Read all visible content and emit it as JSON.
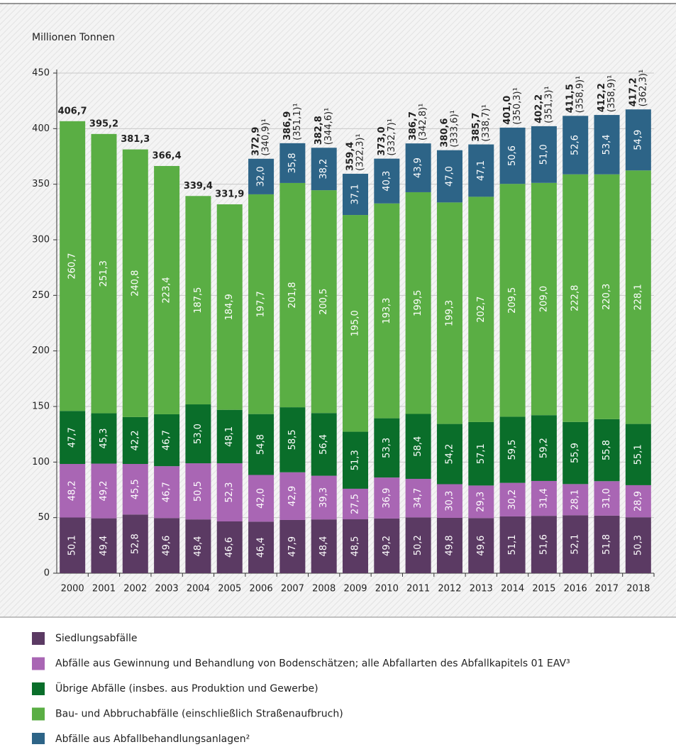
{
  "chart_data": {
    "type": "bar",
    "stacked": true,
    "y_label": "Millionen Tonnen",
    "categories": [
      "2000",
      "2001",
      "2002",
      "2003",
      "2004",
      "2005",
      "2006",
      "2007",
      "2008",
      "2009",
      "2010",
      "2011",
      "2012",
      "2013",
      "2014",
      "2015",
      "2016",
      "2017",
      "2018"
    ],
    "ylim": [
      0,
      450
    ],
    "yticks": [
      0,
      50,
      100,
      150,
      200,
      250,
      300,
      350,
      400,
      450
    ],
    "grid": true,
    "series": [
      {
        "name": "Siedlungsabfälle",
        "color": "#5b3a63",
        "values": [
          50.1,
          49.4,
          52.8,
          49.6,
          48.4,
          46.6,
          46.4,
          47.9,
          48.4,
          48.5,
          49.2,
          50.2,
          49.8,
          49.6,
          51.1,
          51.6,
          52.1,
          51.8,
          50.3
        ],
        "value_labels": [
          "50,1",
          "49,4",
          "52,8",
          "49,6",
          "48,4",
          "46,6",
          "46,4",
          "47,9",
          "48,4",
          "48,5",
          "49,2",
          "50,2",
          "49,8",
          "49,6",
          "51,1",
          "51,6",
          "52,1",
          "51,8",
          "50,3"
        ]
      },
      {
        "name": "Abfälle aus Gewinnung und Behandlung von Bodenschätzen; alle Abfallarten des Abfallkapitels 01 EAV³",
        "color": "#a966b4",
        "values": [
          48.2,
          49.2,
          45.5,
          46.7,
          50.5,
          52.3,
          42.0,
          42.9,
          39.3,
          27.5,
          36.9,
          34.7,
          30.3,
          29.3,
          30.2,
          31.4,
          28.1,
          31.0,
          28.9
        ],
        "value_labels": [
          "48,2",
          "49,2",
          "45,5",
          "46,7",
          "50,5",
          "52,3",
          "42,0",
          "42,9",
          "39,3",
          "27,5",
          "36,9",
          "34,7",
          "30,3",
          "29,3",
          "30,2",
          "31,4",
          "28,1",
          "31,0",
          "28,9"
        ]
      },
      {
        "name": "Übrige Abfälle (insbes. aus Produktion und Gewerbe)",
        "color": "#0a6e2a",
        "values": [
          47.7,
          45.3,
          42.2,
          46.7,
          53.0,
          48.1,
          54.8,
          58.5,
          56.4,
          51.3,
          53.3,
          58.4,
          54.2,
          57.1,
          59.5,
          59.2,
          55.9,
          55.8,
          55.1
        ],
        "value_labels": [
          "47,7",
          "45,3",
          "42,2",
          "46,7",
          "53,0",
          "48,1",
          "54,8",
          "58,5",
          "56,4",
          "51,3",
          "53,3",
          "58,4",
          "54,2",
          "57,1",
          "59,5",
          "59,2",
          "55,9",
          "55,8",
          "55,1"
        ]
      },
      {
        "name": "Bau- und Abbruchabfälle (einschließlich Straßenaufbruch)",
        "color": "#5aae44",
        "values": [
          260.7,
          251.3,
          240.8,
          223.4,
          187.5,
          184.9,
          197.7,
          201.8,
          200.5,
          195.0,
          193.3,
          199.5,
          199.3,
          202.7,
          209.5,
          209.0,
          222.8,
          220.3,
          228.1
        ],
        "value_labels": [
          "260,7",
          "251,3",
          "240,8",
          "223,4",
          "187,5",
          "184,9",
          "197,7",
          "201,8",
          "200,5",
          "195,0",
          "193,3",
          "199,5",
          "199,3",
          "202,7",
          "209,5",
          "209,0",
          "222,8",
          "220,3",
          "228,1"
        ]
      },
      {
        "name": "Abfälle aus Abfallbehandlungsanlagen²",
        "color": "#2d6487",
        "values": [
          null,
          null,
          null,
          null,
          null,
          null,
          32.0,
          35.8,
          38.2,
          37.1,
          40.3,
          43.9,
          47.0,
          47.1,
          50.6,
          51.0,
          52.6,
          53.4,
          54.9
        ],
        "value_labels": [
          null,
          null,
          null,
          null,
          null,
          null,
          "32,0",
          "35,8",
          "38,2",
          "37,1",
          "40,3",
          "43,9",
          "47,0",
          "47,1",
          "50,6",
          "51,0",
          "52,6",
          "53,4",
          "54,9"
        ]
      }
    ],
    "totals": {
      "values": [
        406.7,
        395.2,
        381.3,
        366.4,
        339.4,
        331.9,
        372.9,
        386.9,
        382.8,
        359.4,
        373.0,
        386.7,
        380.6,
        385.7,
        401.0,
        402.2,
        411.5,
        412.2,
        417.2
      ],
      "value_labels": [
        "406,7",
        "395,2",
        "381,3",
        "366,4",
        "339,4",
        "331,9",
        "372,9",
        "386,9",
        "382,8",
        "359,4",
        "373,0",
        "386,7",
        "380,6",
        "385,7",
        "401,0",
        "402,2",
        "411,5",
        "412,2",
        "417,2"
      ]
    },
    "totals_excl": {
      "values": [
        null,
        null,
        null,
        null,
        null,
        null,
        340.9,
        351.1,
        344.6,
        322.3,
        332.7,
        342.8,
        333.6,
        338.7,
        350.3,
        351.3,
        358.9,
        358.9,
        362.3
      ],
      "value_labels": [
        null,
        null,
        null,
        null,
        null,
        null,
        "(340,9)¹",
        "(351,1)¹",
        "(344,6)¹",
        "(322,3)¹",
        "(332,7)¹",
        "(342,8)¹",
        "(333,6)¹",
        "(338,7)¹",
        "(350,3)¹",
        "(351,3)¹",
        "(358,9)¹",
        "(358,9)¹",
        "(362,3)¹"
      ]
    }
  }
}
